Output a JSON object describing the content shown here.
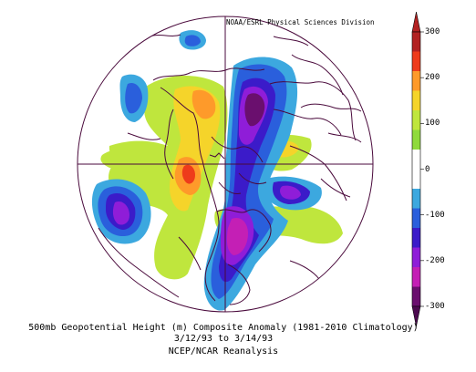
{
  "map": {
    "source": "NOAA/ESRL Physical Sciences Division",
    "title": "500mb Geopotential Height (m) Composite Anomaly (1981-2010 Climatology)",
    "date_range": "3/12/93  to 3/14/93",
    "dataset": "NCEP/NCAR Reanalysis",
    "projection": "north-polar-stereographic",
    "variable": "500mb geopotential height anomaly",
    "units": "m"
  },
  "colorbar": {
    "ticks": [
      "300",
      "200",
      "100",
      "0",
      "-100",
      "-200",
      "-300"
    ],
    "levels": [
      {
        "value": "300",
        "color": "#b22222"
      },
      {
        "value": "250",
        "color": "#ee3b1b"
      },
      {
        "value": "200",
        "color": "#fe9a2a"
      },
      {
        "value": "150",
        "color": "#f5d42a"
      },
      {
        "value": "100",
        "color": "#bfe63d"
      },
      {
        "value": "50",
        "color": "#8fda3b"
      },
      {
        "value": "0a",
        "color": "#ffffff"
      },
      {
        "value": "0b",
        "color": "#ffffff"
      },
      {
        "value": "-50",
        "color": "#3ca8df"
      },
      {
        "value": "-100",
        "color": "#2a5fdc"
      },
      {
        "value": "-150",
        "color": "#3b1bc9"
      },
      {
        "value": "-200",
        "color": "#8f1dd8"
      },
      {
        "value": "-250",
        "color": "#c41fb5"
      },
      {
        "value": "-300",
        "color": "#6a0f6e"
      }
    ],
    "top_arrow_color": "#b22222",
    "bottom_arrow_color": "#4b0a4f"
  },
  "colors": {
    "coastline": "#4a0a3c",
    "grid": "#4a0a3c"
  }
}
